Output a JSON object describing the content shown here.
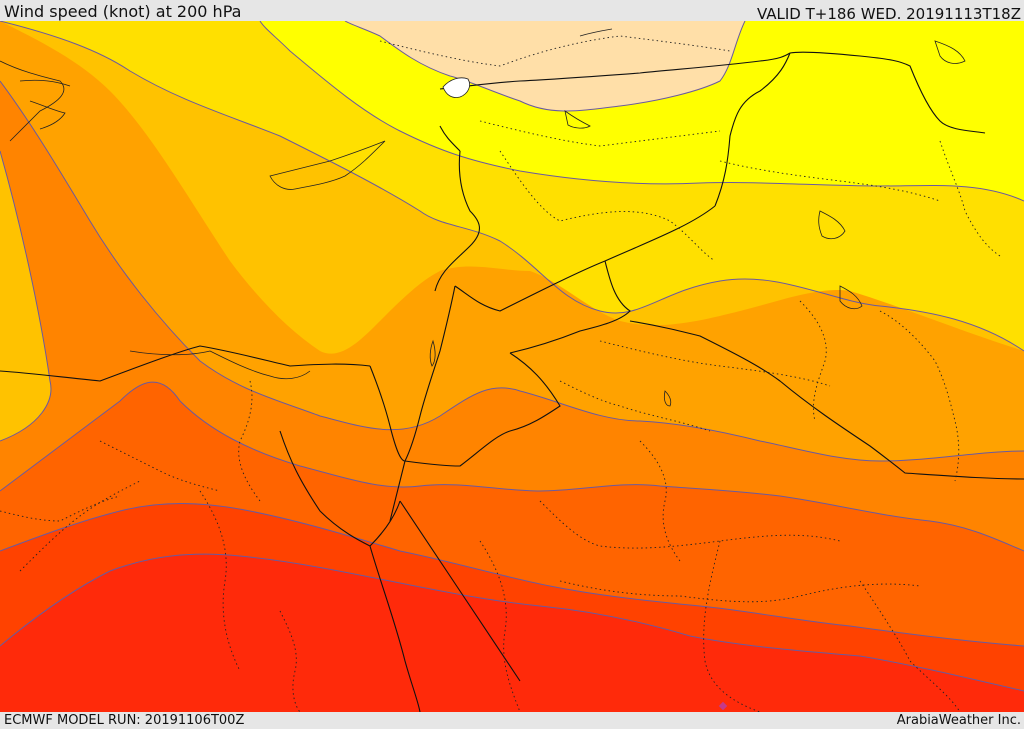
{
  "header": {
    "title": "Wind speed (knot) at 200 hPa",
    "valid_time": "VALID T+186 WED. 20191113T18Z"
  },
  "footer": {
    "model_run": "ECMWF MODEL RUN: 20191106T00Z",
    "credit": "ArabiaWeather Inc."
  },
  "colors": {
    "band_peach": "#ffdfa8",
    "band_yellow": "#ffff00",
    "band_gold": "#ffe000",
    "band_amber": "#ffc200",
    "band_orange_light": "#ffa200",
    "band_orange": "#ff8400",
    "band_orange_dark": "#ff6400",
    "band_red_orange": "#ff4200",
    "band_red": "#ff2a0a",
    "contour_line": "#6a5aa0",
    "border_line": "#111111"
  }
}
